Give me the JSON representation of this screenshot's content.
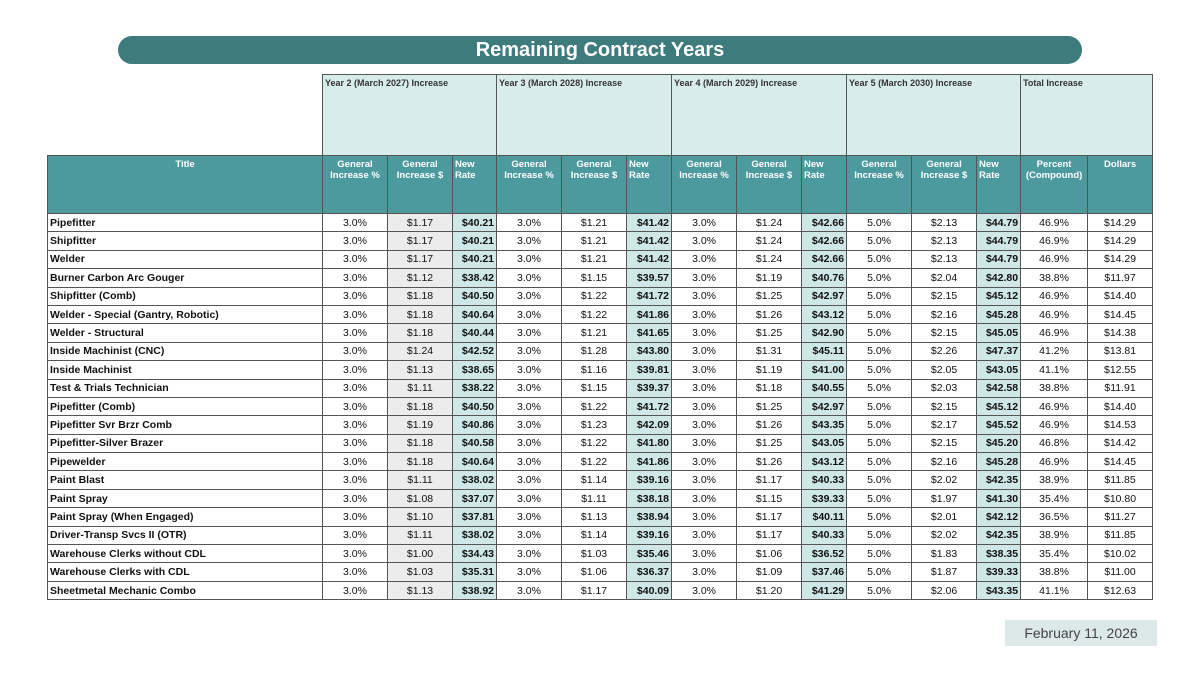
{
  "title": "Remaining Contract Years",
  "date": "February 11, 2026",
  "table": {
    "groups": [
      "Year 2 (March 2027) Increase",
      "Year 3 (March 2028) Increase",
      "Year 4 (March 2029) Increase",
      "Year 5 (March 2030) Increase",
      "Total Increase"
    ],
    "columns": [
      "Title",
      "General Increase %",
      "General Increase $",
      "New Rate",
      "General Increase %",
      "General Increase $",
      "New Rate",
      "General Increase %",
      "General Increase $",
      "New Rate",
      "General Increase %",
      "General Increase $",
      "New Rate",
      "Percent (Compound)",
      "Dollars"
    ],
    "rows": [
      [
        "Pipefitter",
        "3.0%",
        "$1.17",
        "$40.21",
        "3.0%",
        "$1.21",
        "$41.42",
        "3.0%",
        "$1.24",
        "$42.66",
        "5.0%",
        "$2.13",
        "$44.79",
        "46.9%",
        "$14.29"
      ],
      [
        "Shipfitter",
        "3.0%",
        "$1.17",
        "$40.21",
        "3.0%",
        "$1.21",
        "$41.42",
        "3.0%",
        "$1.24",
        "$42.66",
        "5.0%",
        "$2.13",
        "$44.79",
        "46.9%",
        "$14.29"
      ],
      [
        "Welder",
        "3.0%",
        "$1.17",
        "$40.21",
        "3.0%",
        "$1.21",
        "$41.42",
        "3.0%",
        "$1.24",
        "$42.66",
        "5.0%",
        "$2.13",
        "$44.79",
        "46.9%",
        "$14.29"
      ],
      [
        "Burner Carbon Arc Gouger",
        "3.0%",
        "$1.12",
        "$38.42",
        "3.0%",
        "$1.15",
        "$39.57",
        "3.0%",
        "$1.19",
        "$40.76",
        "5.0%",
        "$2.04",
        "$42.80",
        "38.8%",
        "$11.97"
      ],
      [
        "Shipfitter (Comb)",
        "3.0%",
        "$1.18",
        "$40.50",
        "3.0%",
        "$1.22",
        "$41.72",
        "3.0%",
        "$1.25",
        "$42.97",
        "5.0%",
        "$2.15",
        "$45.12",
        "46.9%",
        "$14.40"
      ],
      [
        "Welder - Special (Gantry, Robotic)",
        "3.0%",
        "$1.18",
        "$40.64",
        "3.0%",
        "$1.22",
        "$41.86",
        "3.0%",
        "$1.26",
        "$43.12",
        "5.0%",
        "$2.16",
        "$45.28",
        "46.9%",
        "$14.45"
      ],
      [
        "Welder - Structural",
        "3.0%",
        "$1.18",
        "$40.44",
        "3.0%",
        "$1.21",
        "$41.65",
        "3.0%",
        "$1.25",
        "$42.90",
        "5.0%",
        "$2.15",
        "$45.05",
        "46.9%",
        "$14.38"
      ],
      [
        "Inside Machinist (CNC)",
        "3.0%",
        "$1.24",
        "$42.52",
        "3.0%",
        "$1.28",
        "$43.80",
        "3.0%",
        "$1.31",
        "$45.11",
        "5.0%",
        "$2.26",
        "$47.37",
        "41.2%",
        "$13.81"
      ],
      [
        "Inside Machinist",
        "3.0%",
        "$1.13",
        "$38.65",
        "3.0%",
        "$1.16",
        "$39.81",
        "3.0%",
        "$1.19",
        "$41.00",
        "5.0%",
        "$2.05",
        "$43.05",
        "41.1%",
        "$12.55"
      ],
      [
        "Test & Trials Technician",
        "3.0%",
        "$1.11",
        "$38.22",
        "3.0%",
        "$1.15",
        "$39.37",
        "3.0%",
        "$1.18",
        "$40.55",
        "5.0%",
        "$2.03",
        "$42.58",
        "38.8%",
        "$11.91"
      ],
      [
        "Pipefitter (Comb)",
        "3.0%",
        "$1.18",
        "$40.50",
        "3.0%",
        "$1.22",
        "$41.72",
        "3.0%",
        "$1.25",
        "$42.97",
        "5.0%",
        "$2.15",
        "$45.12",
        "46.9%",
        "$14.40"
      ],
      [
        "Pipefitter Svr Brzr Comb",
        "3.0%",
        "$1.19",
        "$40.86",
        "3.0%",
        "$1.23",
        "$42.09",
        "3.0%",
        "$1.26",
        "$43.35",
        "5.0%",
        "$2.17",
        "$45.52",
        "46.9%",
        "$14.53"
      ],
      [
        "Pipefitter-Silver Brazer",
        "3.0%",
        "$1.18",
        "$40.58",
        "3.0%",
        "$1.22",
        "$41.80",
        "3.0%",
        "$1.25",
        "$43.05",
        "5.0%",
        "$2.15",
        "$45.20",
        "46.8%",
        "$14.42"
      ],
      [
        "Pipewelder",
        "3.0%",
        "$1.18",
        "$40.64",
        "3.0%",
        "$1.22",
        "$41.86",
        "3.0%",
        "$1.26",
        "$43.12",
        "5.0%",
        "$2.16",
        "$45.28",
        "46.9%",
        "$14.45"
      ],
      [
        "Paint Blast",
        "3.0%",
        "$1.11",
        "$38.02",
        "3.0%",
        "$1.14",
        "$39.16",
        "3.0%",
        "$1.17",
        "$40.33",
        "5.0%",
        "$2.02",
        "$42.35",
        "38.9%",
        "$11.85"
      ],
      [
        "Paint Spray",
        "3.0%",
        "$1.08",
        "$37.07",
        "3.0%",
        "$1.11",
        "$38.18",
        "3.0%",
        "$1.15",
        "$39.33",
        "5.0%",
        "$1.97",
        "$41.30",
        "35.4%",
        "$10.80"
      ],
      [
        "Paint Spray (When Engaged)",
        "3.0%",
        "$1.10",
        "$37.81",
        "3.0%",
        "$1.13",
        "$38.94",
        "3.0%",
        "$1.17",
        "$40.11",
        "5.0%",
        "$2.01",
        "$42.12",
        "36.5%",
        "$11.27"
      ],
      [
        "Driver-Transp Svcs II (OTR)",
        "3.0%",
        "$1.11",
        "$38.02",
        "3.0%",
        "$1.14",
        "$39.16",
        "3.0%",
        "$1.17",
        "$40.33",
        "5.0%",
        "$2.02",
        "$42.35",
        "38.9%",
        "$11.85"
      ],
      [
        "Warehouse Clerks without CDL",
        "3.0%",
        "$1.00",
        "$34.43",
        "3.0%",
        "$1.03",
        "$35.46",
        "3.0%",
        "$1.06",
        "$36.52",
        "5.0%",
        "$1.83",
        "$38.35",
        "35.4%",
        "$10.02"
      ],
      [
        "Warehouse Clerks with CDL",
        "3.0%",
        "$1.03",
        "$35.31",
        "3.0%",
        "$1.06",
        "$36.37",
        "3.0%",
        "$1.09",
        "$37.46",
        "5.0%",
        "$1.87",
        "$39.33",
        "38.8%",
        "$11.00"
      ],
      [
        "Sheetmetal Mechanic Combo",
        "3.0%",
        "$1.13",
        "$38.92",
        "3.0%",
        "$1.17",
        "$40.09",
        "3.0%",
        "$1.20",
        "$41.29",
        "5.0%",
        "$2.06",
        "$43.35",
        "41.1%",
        "$12.63"
      ]
    ]
  }
}
